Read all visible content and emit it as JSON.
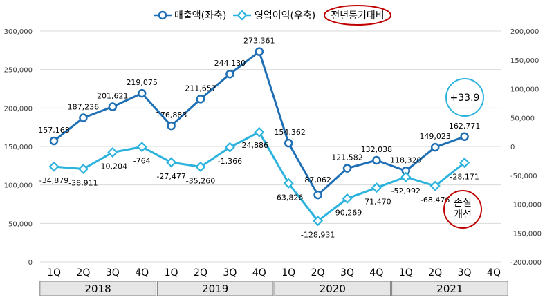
{
  "chart_data": {
    "type": "line",
    "dual_axis": true,
    "categories": [
      "1Q",
      "2Q",
      "3Q",
      "4Q",
      "1Q",
      "2Q",
      "3Q",
      "4Q",
      "1Q",
      "2Q",
      "3Q",
      "4Q",
      "1Q",
      "2Q",
      "3Q",
      "4Q"
    ],
    "year_groups": [
      {
        "label": "2018",
        "span": 4
      },
      {
        "label": "2019",
        "span": 4
      },
      {
        "label": "2020",
        "span": 4
      },
      {
        "label": "2021",
        "span": 4
      }
    ],
    "left_axis": {
      "ylim": [
        0,
        300000
      ],
      "ticks": [
        0,
        50000,
        100000,
        150000,
        200000,
        250000,
        300000
      ],
      "tick_labels": [
        "0",
        "50,000",
        "100,000",
        "150,000",
        "200,000",
        "250,000",
        "300,000"
      ]
    },
    "right_axis": {
      "ylim": [
        -200000,
        200000
      ],
      "ticks": [
        -200000,
        -150000,
        -100000,
        -50000,
        0,
        50000,
        100000,
        150000,
        200000
      ],
      "tick_labels": [
        "-200,000",
        "-150,000",
        "-100,000",
        "-50,000",
        "0",
        "50,000",
        "100,000",
        "150,000",
        "200,000"
      ]
    },
    "series": [
      {
        "name": "매출액(좌축)",
        "axis": "left",
        "color": "#1f6fb5",
        "marker": "circle",
        "values": [
          157168,
          187236,
          201621,
          219075,
          176883,
          211657,
          244130,
          273361,
          154362,
          87062,
          121582,
          132038,
          118320,
          149023,
          162771,
          null
        ],
        "labels": [
          "157,168",
          "187,236",
          "201,621",
          "219,075",
          "176,883",
          "211,657",
          "244,130",
          "273,361",
          "154,362",
          "87,062",
          "121,582",
          "132,038",
          "118,320",
          "149,023",
          "162,771",
          ""
        ]
      },
      {
        "name": "영업이익(우축)",
        "axis": "right",
        "color": "#2bb3de",
        "marker": "diamond",
        "values": [
          -34879,
          -38911,
          -10204,
          -764,
          -27477,
          -35260,
          -1366,
          24886,
          -63826,
          -128931,
          -90269,
          -71470,
          -52992,
          -68476,
          -28171,
          null
        ],
        "labels": [
          "-34,879",
          "-38,911",
          "-10,204",
          "-764",
          "-27,477",
          "-35,260",
          "-1,366",
          "24,886",
          "-63,826",
          "-128,931",
          "-90,269",
          "-71,470",
          "-52,992",
          "-68,476",
          "-28,171",
          ""
        ]
      }
    ],
    "legend": {
      "placement": "top-center",
      "yoy_label": "전년동기대비"
    },
    "annotations": [
      {
        "text": "+33.9",
        "color": "#2bb3de",
        "near": "2021 3Q revenue"
      },
      {
        "text": "손실\n개선",
        "color": "#c00000",
        "near": "2021 3Q operating profit"
      }
    ]
  }
}
